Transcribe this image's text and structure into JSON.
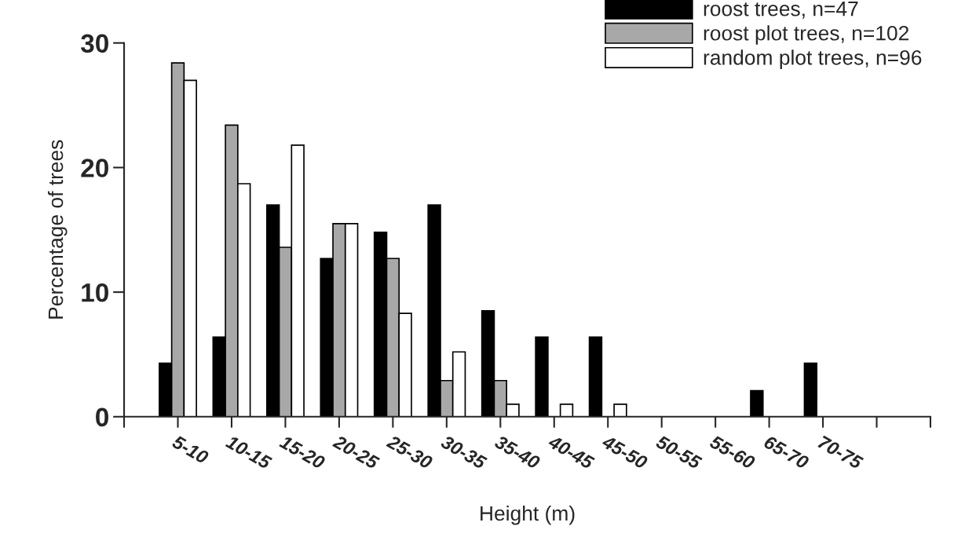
{
  "chart_data": {
    "type": "bar",
    "xlabel": "Height (m)",
    "ylabel": "Percentage of trees",
    "categories": [
      null,
      "5-10",
      "10-15",
      "15-20",
      "20-25",
      "25-30",
      "30-35",
      "35-40",
      "40-45",
      "45-50",
      "50-55",
      "55-60",
      "65-70",
      "70-75",
      null,
      null
    ],
    "series": [
      {
        "name": "roost trees, n=47",
        "color": "#000000",
        "values": [
          null,
          4.3,
          6.4,
          17.0,
          12.7,
          14.8,
          17.0,
          8.5,
          6.4,
          6.4,
          0,
          0,
          2.1,
          4.3,
          null,
          null
        ]
      },
      {
        "name": "roost plot trees, n=102",
        "color": "#a8a8a8",
        "values": [
          null,
          28.4,
          23.4,
          13.6,
          15.5,
          12.7,
          2.9,
          2.9,
          0,
          0,
          0,
          0,
          0,
          0,
          null,
          null
        ]
      },
      {
        "name": "random plot trees, n=96",
        "color": "#ffffff",
        "values": [
          null,
          27.0,
          18.7,
          21.8,
          15.5,
          8.3,
          5.2,
          1.0,
          1.0,
          1.0,
          0,
          0,
          0,
          0,
          null,
          null
        ]
      }
    ],
    "ylim": [
      0,
      30
    ],
    "yticks": [
      0,
      10,
      20,
      30
    ],
    "grid": false,
    "legend": "top right"
  }
}
